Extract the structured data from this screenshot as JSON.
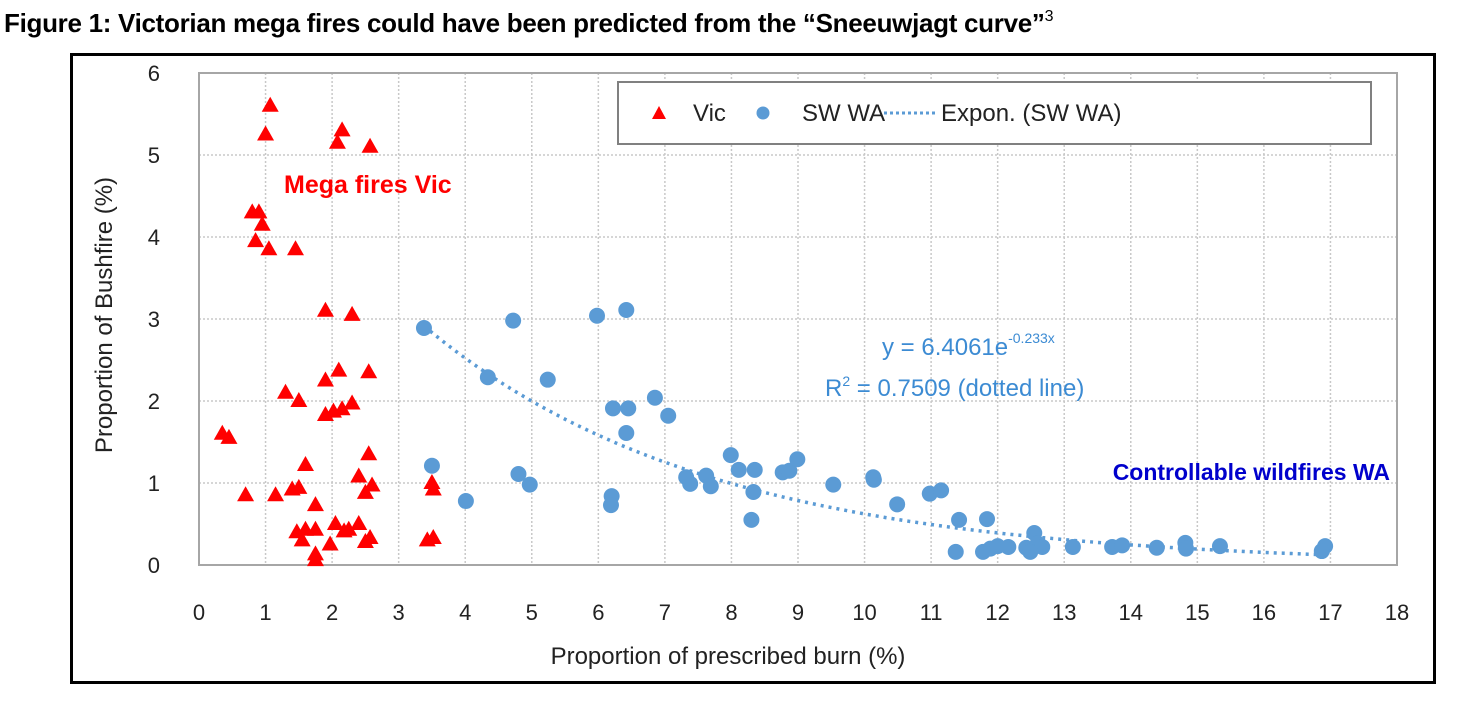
{
  "figure": {
    "title": "Figure 1: Victorian mega fires could have been predicted from the “Sneeuwjagt curve”",
    "title_superscript": "3"
  },
  "chart_data": {
    "type": "scatter",
    "title": "Figure 1: Victorian mega fires could have been predicted from the “Sneeuwjagt curve”",
    "xlabel": "Proportion of prescribed burn (%)",
    "ylabel": "Proportion of Bushfire (%)",
    "xlim": [
      0,
      18
    ],
    "ylim": [
      0,
      6
    ],
    "x_ticks": [
      "0",
      "1",
      "2",
      "3",
      "4",
      "5",
      "6",
      "7",
      "8",
      "9",
      "10",
      "11",
      "12",
      "13",
      "14",
      "15",
      "16",
      "17",
      "18"
    ],
    "y_ticks": [
      "0",
      "1",
      "2",
      "3",
      "4",
      "5",
      "6"
    ],
    "grid": true,
    "legend_position": "top-right",
    "legend": [
      {
        "label": "Vic",
        "marker": "triangle",
        "color": "#ff0000"
      },
      {
        "label": "SW WA",
        "marker": "circle",
        "color": "#5b9bd5"
      },
      {
        "label": "Expon. (SW WA)",
        "marker": "dotted-line",
        "color": "#5b9bd5"
      }
    ],
    "series": [
      {
        "name": "Vic",
        "marker": "triangle",
        "color": "#ff0000",
        "points": [
          [
            1.07,
            5.6
          ],
          [
            1.0,
            5.25
          ],
          [
            2.15,
            5.3
          ],
          [
            2.08,
            5.15
          ],
          [
            2.57,
            5.1
          ],
          [
            0.8,
            4.3
          ],
          [
            0.9,
            4.3
          ],
          [
            0.95,
            4.15
          ],
          [
            0.85,
            3.95
          ],
          [
            1.05,
            3.85
          ],
          [
            1.45,
            3.85
          ],
          [
            1.9,
            3.1
          ],
          [
            2.3,
            3.05
          ],
          [
            2.1,
            2.37
          ],
          [
            2.55,
            2.35
          ],
          [
            1.9,
            2.25
          ],
          [
            1.3,
            2.1
          ],
          [
            1.5,
            2.0
          ],
          [
            2.3,
            1.97
          ],
          [
            2.15,
            1.9
          ],
          [
            2.02,
            1.87
          ],
          [
            1.9,
            1.83
          ],
          [
            0.35,
            1.6
          ],
          [
            0.45,
            1.55
          ],
          [
            1.6,
            1.22
          ],
          [
            2.55,
            1.35
          ],
          [
            2.4,
            1.08
          ],
          [
            2.6,
            0.97
          ],
          [
            2.5,
            0.88
          ],
          [
            0.7,
            0.85
          ],
          [
            1.15,
            0.85
          ],
          [
            1.4,
            0.92
          ],
          [
            1.5,
            0.94
          ],
          [
            1.75,
            0.73
          ],
          [
            1.47,
            0.4
          ],
          [
            1.6,
            0.43
          ],
          [
            1.75,
            0.43
          ],
          [
            2.05,
            0.5
          ],
          [
            2.4,
            0.5
          ],
          [
            2.25,
            0.43
          ],
          [
            2.18,
            0.41
          ],
          [
            1.55,
            0.3
          ],
          [
            1.97,
            0.25
          ],
          [
            2.57,
            0.33
          ],
          [
            2.5,
            0.28
          ],
          [
            1.75,
            0.13
          ],
          [
            1.75,
            0.06
          ],
          [
            3.5,
            1.0
          ],
          [
            3.52,
            0.92
          ],
          [
            3.43,
            0.3
          ],
          [
            3.52,
            0.33
          ]
        ]
      },
      {
        "name": "SW WA",
        "marker": "circle",
        "color": "#5b9bd5",
        "points": [
          [
            3.38,
            2.89
          ],
          [
            4.72,
            2.98
          ],
          [
            5.98,
            3.04
          ],
          [
            6.42,
            3.11
          ],
          [
            4.34,
            2.29
          ],
          [
            5.24,
            2.26
          ],
          [
            6.22,
            1.91
          ],
          [
            6.45,
            1.91
          ],
          [
            6.85,
            2.04
          ],
          [
            7.05,
            1.82
          ],
          [
            6.42,
            1.61
          ],
          [
            3.5,
            1.21
          ],
          [
            4.8,
            1.11
          ],
          [
            4.97,
            0.98
          ],
          [
            4.01,
            0.78
          ],
          [
            6.2,
            0.84
          ],
          [
            6.19,
            0.73
          ],
          [
            7.99,
            1.34
          ],
          [
            8.11,
            1.16
          ],
          [
            8.35,
            1.16
          ],
          [
            8.33,
            0.89
          ],
          [
            8.3,
            0.55
          ],
          [
            7.32,
            1.07
          ],
          [
            7.38,
            0.99
          ],
          [
            7.62,
            1.09
          ],
          [
            7.69,
            0.96
          ],
          [
            8.77,
            1.13
          ],
          [
            8.87,
            1.15
          ],
          [
            8.99,
            1.29
          ],
          [
            9.53,
            0.98
          ],
          [
            10.13,
            1.07
          ],
          [
            10.14,
            1.04
          ],
          [
            10.49,
            0.74
          ],
          [
            10.98,
            0.87
          ],
          [
            11.15,
            0.91
          ],
          [
            11.42,
            0.55
          ],
          [
            11.37,
            0.16
          ],
          [
            11.84,
            0.56
          ],
          [
            11.78,
            0.16
          ],
          [
            11.89,
            0.2
          ],
          [
            12.0,
            0.23
          ],
          [
            12.16,
            0.22
          ],
          [
            12.43,
            0.21
          ],
          [
            12.55,
            0.39
          ],
          [
            12.6,
            0.26
          ],
          [
            12.67,
            0.22
          ],
          [
            12.49,
            0.16
          ],
          [
            13.13,
            0.22
          ],
          [
            13.72,
            0.22
          ],
          [
            13.87,
            0.24
          ],
          [
            14.39,
            0.21
          ],
          [
            14.82,
            0.27
          ],
          [
            14.83,
            0.2
          ],
          [
            15.34,
            0.23
          ],
          [
            16.92,
            0.23
          ],
          [
            16.87,
            0.17
          ]
        ]
      }
    ],
    "trendline": {
      "name": "Expon. (SW WA)",
      "type": "exponential",
      "a": 6.4061,
      "b": -0.233,
      "x_range": [
        3.38,
        16.92
      ],
      "color": "#5b9bd5",
      "style": "dotted"
    },
    "annotations": {
      "mega_fires": {
        "text": "Mega fires Vic",
        "color": "#ff0000"
      },
      "controllable": {
        "text": "Controllable wildfires WA",
        "color": "#0000cc"
      },
      "equation_prefix": "y = 6.4061e",
      "equation_exponent": "-0.233x",
      "r2_prefix": "R",
      "r2_sup": "2",
      "r2_text": " = 0.7509  (dotted line)",
      "equation_color": "#3c8bd3"
    }
  },
  "colors": {
    "grid": "#c8c8c8",
    "plot_border": "#a6a6a6",
    "legend_border": "#808080",
    "frame": "#000000"
  }
}
